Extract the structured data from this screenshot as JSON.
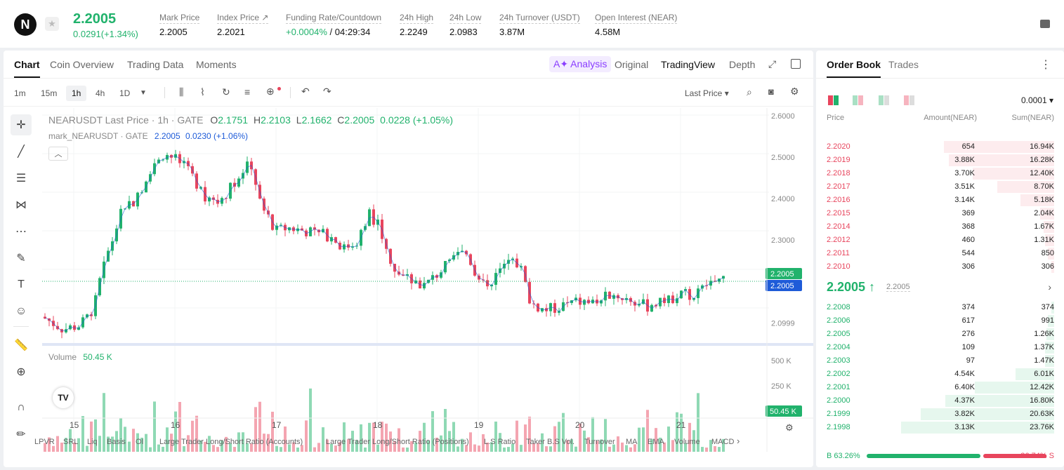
{
  "header": {
    "logo_letter": "N",
    "price": "2.2005",
    "change": "0.0291(+1.34%)",
    "stats": [
      {
        "label": "Mark Price",
        "value": "2.2005"
      },
      {
        "label": "Index Price ↗",
        "value": "2.2021"
      },
      {
        "label": "Funding Rate/Countdown",
        "value_green": "+0.0004%",
        "value_rest": " / 04:29:34"
      },
      {
        "label": "24h High",
        "value": "2.2249"
      },
      {
        "label": "24h Low",
        "value": "2.0983"
      },
      {
        "label": "24h Turnover (USDT)",
        "value": "3.87M"
      },
      {
        "label": "Open Interest (NEAR)",
        "value": "4.58M"
      }
    ]
  },
  "chart_tabs": {
    "left": [
      "Chart",
      "Coin Overview",
      "Trading Data",
      "Moments"
    ],
    "ai": "A✦ Analysis",
    "right": [
      "Original",
      "TradingView",
      "Depth"
    ]
  },
  "timeframes": [
    "1m",
    "15m",
    "1h",
    "4h",
    "1D"
  ],
  "price_type": "Last Price",
  "legend": {
    "line1_prefix": "NEARUSDT Last Price · 1h · GATE",
    "o_label": "O",
    "o": "2.1751",
    "h_label": "H",
    "h": "2.2103",
    "l_label": "L",
    "l": "2.1662",
    "c_label": "C",
    "c": "2.2005",
    "chg": "0.0228 (+1.05%)",
    "line2_prefix": "mark_NEARUSDT · GATE",
    "mark_value": "2.2005",
    "mark_chg": "0.0230 (+1.06%)"
  },
  "volume_label": "Volume",
  "volume_value": "50.45 K",
  "price_axis": [
    "2.6000",
    "2.5000",
    "2.4000",
    "2.3000",
    "2.0999"
  ],
  "price_tag_last": "2.2005",
  "price_tag_mark": "2.2005",
  "volume_axis": [
    "500 K",
    "250 K"
  ],
  "volume_tag": "50.45 K",
  "date_axis": [
    "15",
    "16",
    "17",
    "18",
    "19",
    "20",
    "21"
  ],
  "indicators": [
    "LPVR",
    "SRL",
    "Liq",
    "Basis",
    "OI",
    "Large Trader Long/Short Ratio (Accounts)",
    "Large Trader Long/Short Ratio (Positions)",
    "L.S Ratio",
    "Taker B.S Vol.",
    "Turnover",
    "MA",
    "EMA",
    "Volume",
    "MACD"
  ],
  "orderbook": {
    "tabs": [
      "Order Book",
      "Trades"
    ],
    "tick": "0.0001 ▾",
    "headers": {
      "price": "Price",
      "amount": "Amount(NEAR)",
      "sum": "Sum(NEAR)"
    },
    "asks": [
      {
        "price": "2.2020",
        "amount": "654",
        "sum": "16.94K",
        "depth": 0.72
      },
      {
        "price": "2.2019",
        "amount": "3.88K",
        "sum": "16.28K",
        "depth": 0.69
      },
      {
        "price": "2.2018",
        "amount": "3.70K",
        "sum": "12.40K",
        "depth": 0.53
      },
      {
        "price": "2.2017",
        "amount": "3.51K",
        "sum": "8.70K",
        "depth": 0.37
      },
      {
        "price": "2.2016",
        "amount": "3.14K",
        "sum": "5.18K",
        "depth": 0.22
      },
      {
        "price": "2.2015",
        "amount": "369",
        "sum": "2.04K",
        "depth": 0.09
      },
      {
        "price": "2.2014",
        "amount": "368",
        "sum": "1.67K",
        "depth": 0.07
      },
      {
        "price": "2.2012",
        "amount": "460",
        "sum": "1.31K",
        "depth": 0.06
      },
      {
        "price": "2.2011",
        "amount": "544",
        "sum": "850",
        "depth": 0.04
      },
      {
        "price": "2.2010",
        "amount": "306",
        "sum": "306",
        "depth": 0.02
      }
    ],
    "mid_price": "2.2005 ↑",
    "mid_mark": "2.2005",
    "bids": [
      {
        "price": "2.2008",
        "amount": "374",
        "sum": "374",
        "depth": 0.02
      },
      {
        "price": "2.2006",
        "amount": "617",
        "sum": "991",
        "depth": 0.04
      },
      {
        "price": "2.2005",
        "amount": "276",
        "sum": "1.26K",
        "depth": 0.05
      },
      {
        "price": "2.2004",
        "amount": "109",
        "sum": "1.37K",
        "depth": 0.06
      },
      {
        "price": "2.2003",
        "amount": "97",
        "sum": "1.47K",
        "depth": 0.06
      },
      {
        "price": "2.2002",
        "amount": "4.54K",
        "sum": "6.01K",
        "depth": 0.25
      },
      {
        "price": "2.2001",
        "amount": "6.40K",
        "sum": "12.42K",
        "depth": 0.52
      },
      {
        "price": "2.2000",
        "amount": "4.37K",
        "sum": "16.80K",
        "depth": 0.71
      },
      {
        "price": "2.1999",
        "amount": "3.82K",
        "sum": "20.63K",
        "depth": 0.87
      },
      {
        "price": "2.1998",
        "amount": "3.13K",
        "sum": "23.76K",
        "depth": 1.0
      }
    ],
    "buy_ratio": "B 63.26%",
    "sell_ratio": "36.74% S",
    "buy_fraction": 0.6326
  },
  "colors": {
    "up": "#21b26c",
    "down": "#e8455d",
    "mark": "#1e5bd8"
  }
}
